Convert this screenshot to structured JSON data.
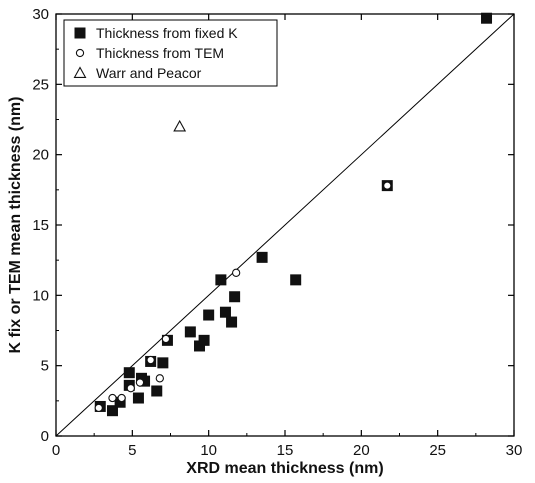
{
  "chart_data": {
    "type": "scatter",
    "xlabel": "XRD mean thickness (nm)",
    "ylabel": "K fix or TEM mean thickness (nm)",
    "xlim": [
      0,
      30
    ],
    "ylim": [
      0,
      30
    ],
    "xticks": [
      0,
      5,
      10,
      15,
      20,
      25,
      30
    ],
    "yticks": [
      0,
      5,
      10,
      15,
      20,
      25,
      30
    ],
    "x_tick_labels": [
      "0",
      "5",
      "10",
      "15",
      "20",
      "25",
      "30"
    ],
    "y_tick_labels": [
      "0",
      "5",
      "10",
      "15",
      "20",
      "25",
      "30"
    ],
    "grid": false,
    "legend_position": "top-left",
    "reference_line": {
      "type": "1:1",
      "from": [
        0,
        0
      ],
      "to": [
        30,
        30
      ]
    },
    "series": [
      {
        "name": "Thickness from fixed K",
        "marker": "filled-square",
        "points": [
          [
            2.9,
            2.1
          ],
          [
            3.7,
            1.8
          ],
          [
            4.2,
            2.4
          ],
          [
            4.8,
            4.5
          ],
          [
            4.8,
            3.6
          ],
          [
            5.4,
            2.7
          ],
          [
            5.6,
            4.1
          ],
          [
            5.8,
            3.9
          ],
          [
            6.2,
            5.3
          ],
          [
            6.6,
            3.2
          ],
          [
            7.0,
            5.2
          ],
          [
            7.3,
            6.8
          ],
          [
            8.8,
            7.4
          ],
          [
            9.4,
            6.4
          ],
          [
            9.7,
            6.8
          ],
          [
            10.0,
            8.6
          ],
          [
            10.8,
            11.1
          ],
          [
            11.1,
            8.8
          ],
          [
            11.5,
            8.1
          ],
          [
            11.7,
            9.9
          ],
          [
            13.5,
            12.7
          ],
          [
            15.7,
            11.1
          ],
          [
            21.7,
            17.8
          ],
          [
            28.2,
            29.7
          ]
        ]
      },
      {
        "name": "Thickness from TEM",
        "marker": "open-circle",
        "points": [
          [
            2.8,
            2.0
          ],
          [
            3.7,
            2.7
          ],
          [
            4.3,
            2.7
          ],
          [
            4.9,
            3.4
          ],
          [
            5.5,
            3.8
          ],
          [
            6.2,
            5.4
          ],
          [
            6.8,
            4.1
          ],
          [
            7.2,
            6.9
          ],
          [
            11.8,
            11.6
          ],
          [
            21.7,
            17.8
          ]
        ]
      },
      {
        "name": "Warr and Peacor",
        "marker": "open-triangle",
        "points": [
          [
            8.1,
            22.0
          ]
        ]
      }
    ]
  }
}
